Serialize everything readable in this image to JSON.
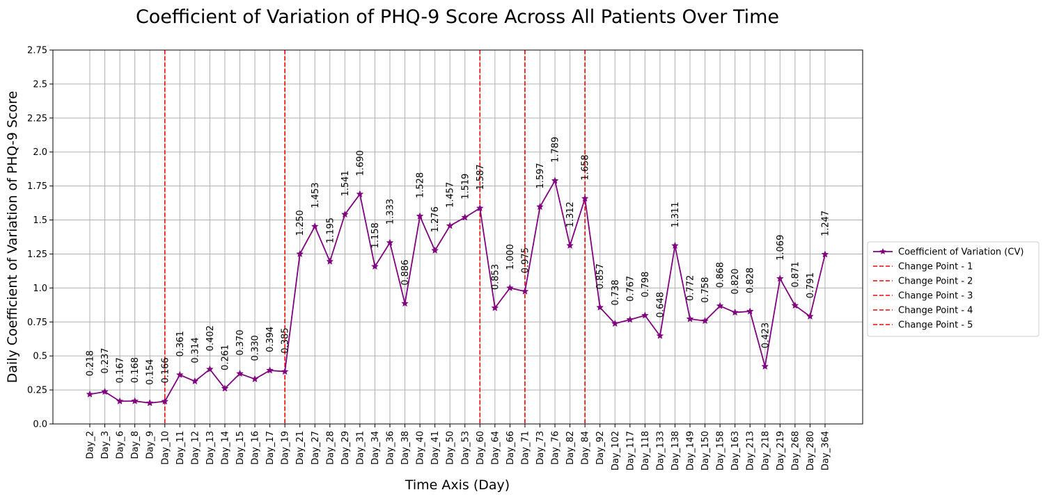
{
  "chart_data": {
    "type": "line",
    "title": "Coefficient of Variation of PHQ-9 Score Across All Patients Over Time",
    "xlabel": "Time Axis (Day)",
    "ylabel": "Daily Coefficient of Variation of PHQ-9 Score",
    "ylim": [
      0,
      2.75
    ],
    "yticks": [
      "0.0",
      "0.25",
      "0.5",
      "0.75",
      "1.0",
      "1.25",
      "1.5",
      "1.75",
      "2.0",
      "2.25",
      "2.5",
      "2.75"
    ],
    "grid": true,
    "legend_position": "center-right outside",
    "categories": [
      "Day_2",
      "Day_3",
      "Day_6",
      "Day_8",
      "Day_9",
      "Day_10",
      "Day_11",
      "Day_12",
      "Day_13",
      "Day_14",
      "Day_15",
      "Day_16",
      "Day_17",
      "Day_19",
      "Day_21",
      "Day_27",
      "Day_28",
      "Day_29",
      "Day_31",
      "Day_34",
      "Day_36",
      "Day_38",
      "Day_40",
      "Day_41",
      "Day_50",
      "Day_53",
      "Day_60",
      "Day_64",
      "Day_66",
      "Day_71",
      "Day_73",
      "Day_76",
      "Day_82",
      "Day_84",
      "Day_92",
      "Day_102",
      "Day_117",
      "Day_118",
      "Day_133",
      "Day_138",
      "Day_149",
      "Day_150",
      "Day_158",
      "Day_163",
      "Day_213",
      "Day_218",
      "Day_219",
      "Day_268",
      "Day_280",
      "Day_364"
    ],
    "series": [
      {
        "name": "Coefficient of Variation (CV)",
        "color": "#800080",
        "marker": "star",
        "values": [
          0.218,
          0.237,
          0.167,
          0.168,
          0.154,
          0.166,
          0.361,
          0.314,
          0.402,
          0.261,
          0.37,
          0.33,
          0.394,
          0.385,
          1.25,
          1.453,
          1.195,
          1.541,
          1.69,
          1.158,
          1.333,
          0.886,
          1.528,
          1.276,
          1.457,
          1.519,
          1.587,
          0.853,
          1.0,
          0.975,
          1.597,
          1.789,
          1.312,
          1.658,
          0.857,
          0.738,
          0.767,
          0.798,
          0.648,
          1.311,
          0.772,
          0.758,
          0.868,
          0.82,
          0.828,
          0.423,
          1.069,
          0.871,
          0.791,
          1.247
        ],
        "value_labels": [
          "0.218",
          "0.237",
          "0.167",
          "0.168",
          "0.154",
          "0.166",
          "0.361",
          "0.314",
          "0.402",
          "0.261",
          "0.370",
          "0.330",
          "0.394",
          "0.385",
          "1.250",
          "1.453",
          "1.195",
          "1.541",
          "1.690",
          "1.158",
          "1.333",
          "0.886",
          "1.528",
          "1.276",
          "1.457",
          "1.519",
          "1.587",
          "0.853",
          "1.000",
          "0.975",
          "1.597",
          "1.789",
          "1.312",
          "1.658",
          "0.857",
          "0.738",
          "0.767",
          "0.798",
          "0.648",
          "1.311",
          "0.772",
          "0.758",
          "0.868",
          "0.820",
          "0.828",
          "0.423",
          "1.069",
          "0.871",
          "0.791",
          "1.247"
        ]
      }
    ],
    "change_points": [
      {
        "name": "Change Point - 1",
        "category": "Day_10",
        "color": "#ff0000"
      },
      {
        "name": "Change Point - 2",
        "category": "Day_19",
        "color": "#ff0000"
      },
      {
        "name": "Change Point - 3",
        "category": "Day_60",
        "color": "#ff0000"
      },
      {
        "name": "Change Point - 4",
        "category": "Day_71",
        "color": "#ff0000"
      },
      {
        "name": "Change Point - 5",
        "category": "Day_84",
        "color": "#ff0000"
      }
    ]
  }
}
